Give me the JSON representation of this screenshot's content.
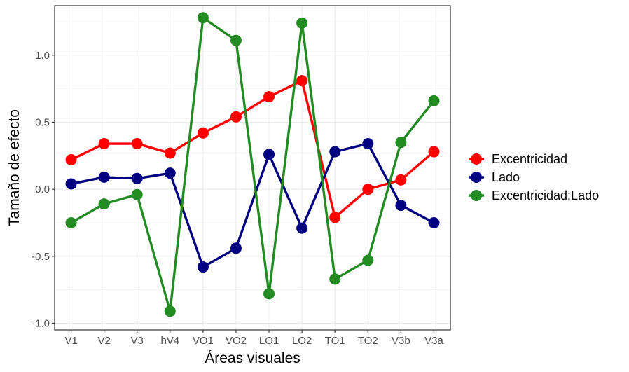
{
  "chart_data": {
    "type": "line",
    "title": "",
    "xlabel": "Áreas visuales",
    "ylabel": "Tamaño de efecto",
    "categories": [
      "V1",
      "V2",
      "V3",
      "hV4",
      "VO1",
      "VO2",
      "LO1",
      "LO2",
      "TO1",
      "TO2",
      "V3b",
      "V3a"
    ],
    "ylim": [
      -1.05,
      1.37
    ],
    "yticks": [
      "-1.0",
      "-0.5",
      "0.0",
      "0.5",
      "1.0"
    ],
    "grid": true,
    "legend_position": "right",
    "series": [
      {
        "name": "Excentricidad",
        "color": "#ff0000",
        "values": [
          0.22,
          0.34,
          0.34,
          0.27,
          0.42,
          0.54,
          0.69,
          0.81,
          -0.21,
          0.0,
          0.07,
          0.28
        ]
      },
      {
        "name": "Lado",
        "color": "#000080",
        "values": [
          0.04,
          0.09,
          0.08,
          0.12,
          -0.58,
          -0.44,
          0.26,
          -0.29,
          0.28,
          0.34,
          -0.12,
          -0.25
        ]
      },
      {
        "name": "Excentricidad:Lado",
        "color": "#228b22",
        "values": [
          -0.25,
          -0.11,
          -0.04,
          -0.91,
          1.28,
          1.11,
          -0.78,
          1.24,
          -0.67,
          -0.53,
          0.35,
          0.66
        ]
      }
    ]
  }
}
